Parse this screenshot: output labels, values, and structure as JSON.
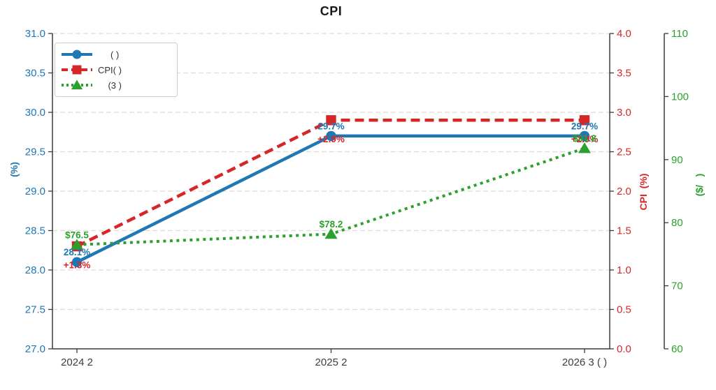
{
  "chart_data": {
    "type": "line",
    "title": "CPI",
    "x_categories": [
      "2024 2",
      "2025 2",
      "2026 3 ( )"
    ],
    "axes": {
      "left": {
        "label": "(%)",
        "color": "#1f77b4",
        "min": 27.0,
        "max": 31.0,
        "ticks": [
          "31.0",
          "30.5",
          "30.0",
          "29.5",
          "29.0",
          "28.5",
          "28.0",
          "27.5",
          "27.0"
        ]
      },
      "right_inner": {
        "label": "CPI  (%)",
        "color": "#d62728",
        "min": 0.0,
        "max": 4.0,
        "ticks": [
          "4.0",
          "3.5",
          "3.0",
          "2.5",
          "2.0",
          "1.5",
          "1.0",
          "0.5",
          "0.0"
        ]
      },
      "right_outer": {
        "label": "($/   )",
        "color": "#2ca02c",
        "min": 60,
        "max": 110,
        "ticks": [
          "110",
          "100",
          "90",
          "80",
          "70",
          "60"
        ]
      }
    },
    "series": [
      {
        "name": "     ( )",
        "axis": "left",
        "color": "#1f77b4",
        "line_style": "solid",
        "marker": "circle",
        "values": [
          28.1,
          29.7,
          29.7
        ],
        "point_labels": [
          "28.1%",
          "29.7%",
          "29.7%"
        ]
      },
      {
        "name": "CPI( )",
        "axis": "right_inner",
        "color": "#d62728",
        "line_style": "dashed",
        "marker": "square",
        "values": [
          1.3,
          2.9,
          2.9
        ],
        "point_labels": [
          "+1.3%",
          "+2.9%",
          "+2.9%"
        ]
      },
      {
        "name": "    (3 )",
        "axis": "right_outer",
        "color": "#2ca02c",
        "line_style": "dotted",
        "marker": "triangle",
        "values": [
          76.5,
          78.2,
          91.8
        ],
        "point_labels": [
          "$76.5",
          "$78.2",
          "$91.8"
        ]
      }
    ],
    "grid": {
      "on": true,
      "style": "dashed",
      "color": "#dcdcdc"
    },
    "legend": {
      "position": "top-left"
    },
    "spine_color": "#3c3c3c",
    "x_tick_color": "#3c3c3c"
  }
}
